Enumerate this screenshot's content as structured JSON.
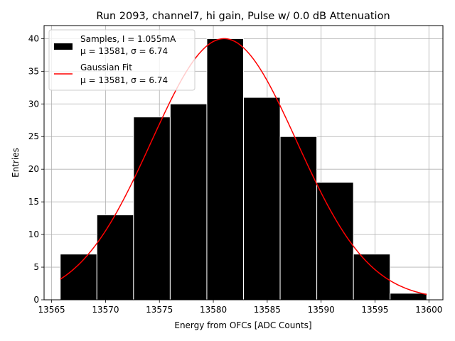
{
  "chart_data": {
    "type": "bar",
    "title": "Run 2093, channel7, hi gain, Pulse w/ 0.0 dB Attenuation",
    "xlabel": "Energy from OFCs [ADC Counts]",
    "ylabel": "Entries",
    "xlim": [
      13564.3,
      13601.3
    ],
    "ylim": [
      0,
      42
    ],
    "xticks": [
      13565,
      13570,
      13575,
      13580,
      13585,
      13590,
      13595,
      13600
    ],
    "yticks": [
      0,
      5,
      10,
      15,
      20,
      25,
      30,
      35,
      40
    ],
    "grid": true,
    "legend_position": "top-left",
    "bins": {
      "edges": [
        13565.8,
        13569.2,
        13572.6,
        13576.0,
        13579.4,
        13582.8,
        13586.2,
        13589.6,
        13593.0,
        13596.4,
        13599.8
      ],
      "counts": [
        7,
        13,
        28,
        30,
        40,
        31,
        25,
        18,
        7,
        1
      ]
    },
    "fit": {
      "mu": 13581.0,
      "sigma": 6.74,
      "amplitude": 40.0,
      "x_range": [
        13565.8,
        13599.8
      ]
    },
    "series": [
      {
        "name": "Samples, I = 1.055mA",
        "name_line2": "μ = 13581, σ = 6.74",
        "color": "#000000"
      },
      {
        "name": "Gaussian Fit",
        "name_line2": "μ = 13581, σ = 6.74",
        "color": "#ff0000"
      }
    ]
  }
}
